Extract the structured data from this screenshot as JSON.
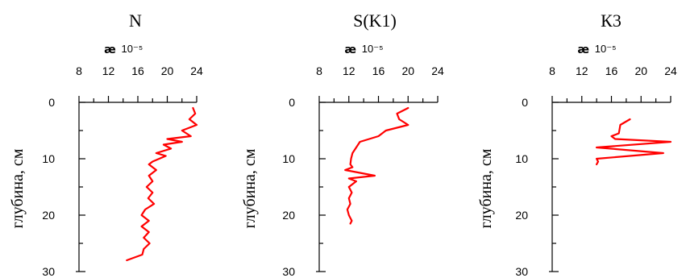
{
  "chart_data": [
    {
      "type": "line",
      "title": "N",
      "unit_symbol": "æ",
      "unit_exponent": "10⁻⁵",
      "ylabel": "глубина, см",
      "xlim": [
        8,
        24
      ],
      "ylim": [
        0,
        30
      ],
      "xticks": [
        8,
        12,
        16,
        20,
        24
      ],
      "yticks": [
        0,
        10,
        20,
        30
      ],
      "x_axis_position": "top",
      "y_inverted": true,
      "color": "#ff0000",
      "points": [
        [
          23.5,
          1
        ],
        [
          23.8,
          2
        ],
        [
          23,
          3
        ],
        [
          24,
          4
        ],
        [
          22,
          5
        ],
        [
          23.2,
          6
        ],
        [
          20,
          6.5
        ],
        [
          22,
          7
        ],
        [
          19.5,
          7.5
        ],
        [
          20.5,
          8.2
        ],
        [
          18.5,
          9
        ],
        [
          19.8,
          9.5
        ],
        [
          18,
          10.5
        ],
        [
          17.5,
          11
        ],
        [
          18.5,
          12
        ],
        [
          17.5,
          13
        ],
        [
          18,
          14
        ],
        [
          17.2,
          15
        ],
        [
          18,
          16
        ],
        [
          17.4,
          17
        ],
        [
          18.2,
          18
        ],
        [
          17,
          19
        ],
        [
          16.5,
          20
        ],
        [
          17.5,
          21
        ],
        [
          16.5,
          22
        ],
        [
          17.5,
          23
        ],
        [
          16.8,
          24
        ],
        [
          17.6,
          25
        ],
        [
          16.8,
          26
        ],
        [
          16.6,
          27
        ],
        [
          14.5,
          28
        ]
      ]
    },
    {
      "type": "line",
      "title": "S(K1)",
      "unit_symbol": "æ",
      "unit_exponent": "10⁻⁵",
      "ylabel": "глубина, см",
      "xlim": [
        8,
        24
      ],
      "ylim": [
        0,
        30
      ],
      "xticks": [
        8,
        12,
        16,
        20,
        24
      ],
      "yticks": [
        0,
        10,
        20,
        30
      ],
      "x_axis_position": "top",
      "y_inverted": true,
      "color": "#ff0000",
      "points": [
        [
          20,
          1
        ],
        [
          18.5,
          2
        ],
        [
          18.8,
          3
        ],
        [
          20,
          4
        ],
        [
          17,
          5
        ],
        [
          16,
          6
        ],
        [
          13.5,
          7
        ],
        [
          13,
          8
        ],
        [
          12.5,
          9
        ],
        [
          12.3,
          10
        ],
        [
          12.2,
          11
        ],
        [
          12.5,
          11.5
        ],
        [
          11.5,
          12
        ],
        [
          15.5,
          13
        ],
        [
          12,
          13.5
        ],
        [
          13,
          14
        ],
        [
          12,
          15
        ],
        [
          12.4,
          16
        ],
        [
          12,
          17
        ],
        [
          12.2,
          18
        ],
        [
          11.8,
          19
        ],
        [
          12,
          20
        ],
        [
          12.4,
          21
        ],
        [
          12.2,
          21.5
        ]
      ]
    },
    {
      "type": "line",
      "title": "К3",
      "unit_symbol": "æ",
      "unit_exponent": "10⁻⁵",
      "ylabel": "глубина, см",
      "xlim": [
        8,
        24
      ],
      "ylim": [
        0,
        30
      ],
      "xticks": [
        8,
        12,
        16,
        20,
        24
      ],
      "yticks": [
        0,
        10,
        20,
        30
      ],
      "x_axis_position": "top",
      "y_inverted": true,
      "color": "#ff0000",
      "points": [
        [
          18.5,
          3
        ],
        [
          17.2,
          4
        ],
        [
          17,
          5.5
        ],
        [
          16,
          6
        ],
        [
          16.5,
          6.5
        ],
        [
          24,
          7
        ],
        [
          14,
          8
        ],
        [
          23,
          9
        ],
        [
          14,
          10
        ],
        [
          14.2,
          10.5
        ],
        [
          14,
          11
        ]
      ]
    }
  ]
}
